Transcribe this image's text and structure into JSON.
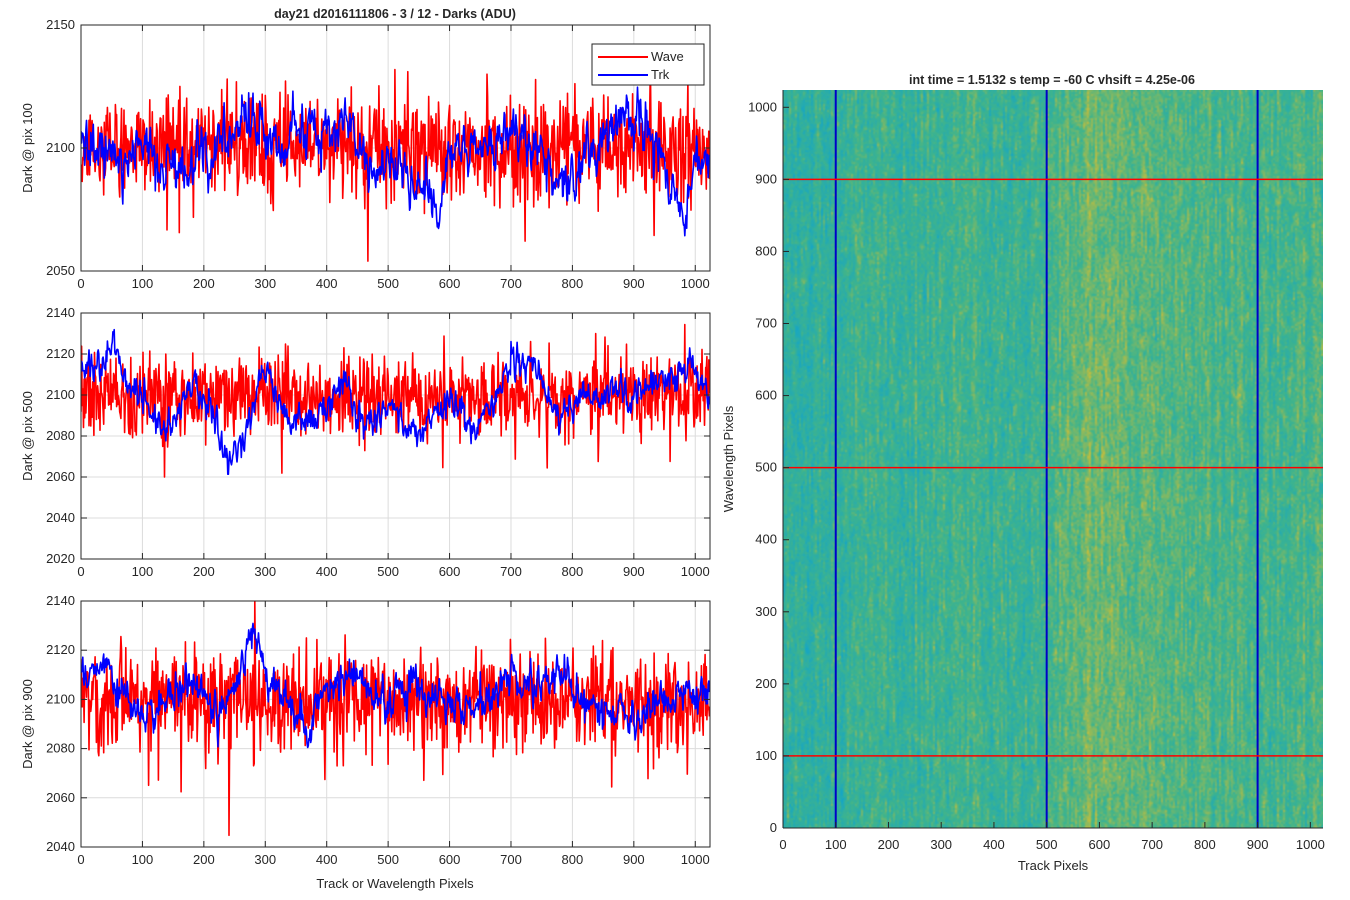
{
  "figure": {
    "left_title": "day21 d2016111806 - 3 / 12 - Darks (ADU)",
    "right_title": "int time = 1.5132 s    temp = -60 C    vhsift = 4.25e-06",
    "shared_xlabel": "Track or Wavelength Pixels",
    "colors": {
      "wave": "#ff0000",
      "trk": "#0000ff",
      "grid": "#d9d9d9",
      "axes": "#262626"
    }
  },
  "chart_data": [
    {
      "type": "line",
      "title": "day21 d2016111806 - 3 / 12 - Darks (ADU)",
      "ylabel": "Dark @ pix 100",
      "xlabel": "",
      "xlim": [
        0,
        1024
      ],
      "ylim": [
        2050,
        2150
      ],
      "xticks": [
        0,
        100,
        200,
        300,
        400,
        500,
        600,
        700,
        800,
        900,
        1000
      ],
      "yticks": [
        2050,
        2100,
        2150
      ],
      "grid": true,
      "legend": {
        "placement": "top-right",
        "entries": [
          "Wave",
          "Trk"
        ]
      },
      "series": [
        {
          "name": "Wave",
          "color": "#ff0000",
          "mean": 2100,
          "noise_sd": 10,
          "points": 1024
        },
        {
          "name": "Trk",
          "color": "#0000ff",
          "points": 1024,
          "noise_sd": 5,
          "trend_x": [
            0,
            30,
            60,
            100,
            130,
            160,
            200,
            240,
            280,
            300,
            330,
            360,
            400,
            430,
            460,
            480,
            500,
            540,
            560,
            580,
            600,
            620,
            660,
            700,
            740,
            780,
            820,
            860,
            880,
            900,
            940,
            960,
            980,
            1000,
            1024
          ],
          "trend_y": [
            2105,
            2100,
            2092,
            2102,
            2092,
            2088,
            2100,
            2105,
            2112,
            2100,
            2102,
            2110,
            2105,
            2110,
            2100,
            2088,
            2095,
            2083,
            2092,
            2070,
            2095,
            2100,
            2098,
            2105,
            2100,
            2085,
            2095,
            2108,
            2115,
            2110,
            2100,
            2085,
            2075,
            2092,
            2095
          ]
        }
      ]
    },
    {
      "type": "line",
      "title": "",
      "ylabel": "Dark @ pix 500",
      "xlabel": "",
      "xlim": [
        0,
        1024
      ],
      "ylim": [
        2020,
        2140
      ],
      "xticks": [
        0,
        100,
        200,
        300,
        400,
        500,
        600,
        700,
        800,
        900,
        1000
      ],
      "yticks": [
        2020,
        2040,
        2060,
        2080,
        2100,
        2120,
        2140
      ],
      "grid": true,
      "series": [
        {
          "name": "Wave",
          "color": "#ff0000",
          "mean": 2100,
          "noise_sd": 10,
          "points": 1024
        },
        {
          "name": "Trk",
          "color": "#0000ff",
          "points": 1024,
          "noise_sd": 4,
          "trend_x": [
            0,
            30,
            55,
            80,
            100,
            140,
            180,
            210,
            240,
            270,
            300,
            330,
            360,
            400,
            430,
            460,
            500,
            540,
            560,
            600,
            640,
            680,
            700,
            740,
            780,
            820,
            860,
            900,
            960,
            1000,
            1024
          ],
          "trend_y": [
            2115,
            2112,
            2125,
            2100,
            2095,
            2083,
            2105,
            2098,
            2065,
            2085,
            2115,
            2090,
            2085,
            2095,
            2110,
            2082,
            2095,
            2085,
            2085,
            2098,
            2085,
            2100,
            2118,
            2112,
            2090,
            2100,
            2102,
            2100,
            2110,
            2115,
            2095
          ]
        }
      ]
    },
    {
      "type": "line",
      "title": "",
      "ylabel": "Dark @ pix 900",
      "xlabel": "Track or Wavelength Pixels",
      "xlim": [
        0,
        1024
      ],
      "ylim": [
        2040,
        2140
      ],
      "xticks": [
        0,
        100,
        200,
        300,
        400,
        500,
        600,
        700,
        800,
        900,
        1000
      ],
      "yticks": [
        2040,
        2060,
        2080,
        2100,
        2120,
        2140
      ],
      "grid": true,
      "series": [
        {
          "name": "Wave",
          "color": "#ff0000",
          "mean": 2100,
          "noise_sd": 10,
          "points": 1024
        },
        {
          "name": "Trk",
          "color": "#0000ff",
          "points": 1024,
          "noise_sd": 4,
          "trend_x": [
            0,
            30,
            60,
            100,
            140,
            180,
            220,
            250,
            280,
            300,
            340,
            370,
            400,
            440,
            460,
            500,
            540,
            580,
            620,
            660,
            700,
            740,
            780,
            820,
            860,
            900,
            940,
            980,
            1024
          ],
          "trend_y": [
            2108,
            2112,
            2105,
            2092,
            2100,
            2108,
            2095,
            2100,
            2130,
            2110,
            2098,
            2090,
            2105,
            2112,
            2105,
            2098,
            2110,
            2100,
            2095,
            2100,
            2112,
            2105,
            2110,
            2098,
            2095,
            2092,
            2100,
            2105,
            2102
          ]
        }
      ]
    },
    {
      "type": "heatmap",
      "title": "int time = 1.5132 s    temp = -60 C    vhsift = 4.25e-06",
      "xlabel": "Track Pixels",
      "ylabel": "Wavelength Pixels",
      "xlim": [
        0,
        1024
      ],
      "ylim": [
        0,
        1024
      ],
      "xticks": [
        0,
        100,
        200,
        300,
        400,
        500,
        600,
        700,
        800,
        900,
        1000
      ],
      "yticks": [
        0,
        100,
        200,
        300,
        400,
        500,
        600,
        700,
        800,
        900,
        1000
      ],
      "colormap": "parula",
      "color_low": "#14a5c8",
      "color_mid": "#3fb48c",
      "color_high": "#c8bd3a",
      "column_profile_x": [
        0,
        50,
        100,
        150,
        200,
        250,
        300,
        350,
        400,
        450,
        500,
        550,
        600,
        650,
        700,
        750,
        800,
        850,
        900,
        950,
        1024
      ],
      "column_profile_v": [
        0.35,
        0.3,
        0.4,
        0.45,
        0.45,
        0.42,
        0.45,
        0.5,
        0.45,
        0.42,
        0.45,
        0.6,
        0.65,
        0.62,
        0.58,
        0.55,
        0.55,
        0.5,
        0.48,
        0.52,
        0.55
      ],
      "vertical_marker_lines_x": [
        100,
        500,
        900
      ],
      "vertical_marker_color": "#0000c8",
      "horizontal_marker_lines_y": [
        100,
        500,
        900
      ],
      "horizontal_marker_color": "#ff0000"
    }
  ]
}
